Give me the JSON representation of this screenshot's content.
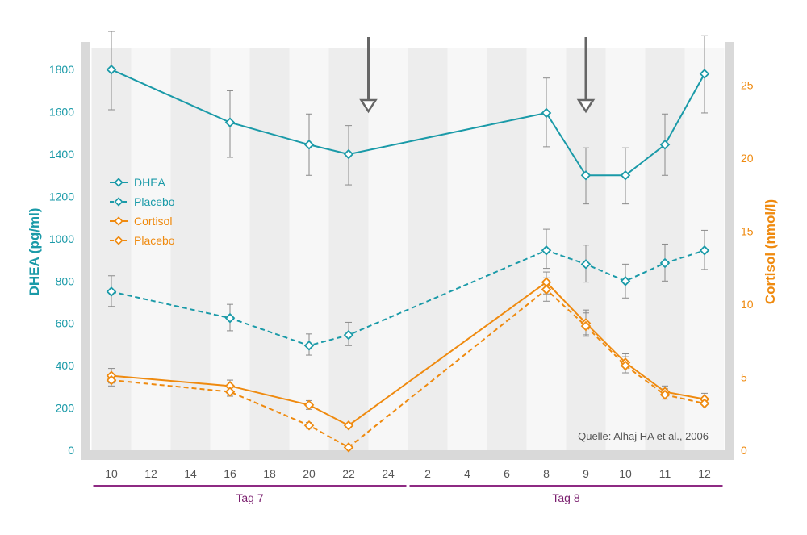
{
  "colors": {
    "dhea": "#1a9aa8",
    "cortisol": "#ef8a0f",
    "group_line": "#8e2a83",
    "arrow": "#666666",
    "error_bar": "#8a8a8a"
  },
  "chart_data": {
    "type": "line",
    "x_categories": [
      "10",
      "12",
      "14",
      "16",
      "18",
      "20",
      "22",
      "24",
      "2",
      "4",
      "6",
      "8",
      "9",
      "10",
      "11",
      "12"
    ],
    "x_groups": [
      {
        "label": "Tag 7",
        "from_index": 0,
        "to_index": 7
      },
      {
        "label": "Tag 8",
        "from_index": 8,
        "to_index": 15
      }
    ],
    "y_left": {
      "label": "DHEA (pg/ml)",
      "range": [
        0,
        1900
      ],
      "ticks": [
        0,
        200,
        400,
        600,
        800,
        1000,
        1200,
        1400,
        1600,
        1800
      ]
    },
    "y_right": {
      "label": "Cortisol (nmol/l)",
      "range": [
        0,
        27.5
      ],
      "ticks": [
        0,
        5,
        10,
        15,
        20,
        25
      ]
    },
    "series": [
      {
        "name": "DHEA",
        "axis": "left",
        "style": "solid",
        "color_key": "dhea",
        "points": [
          {
            "x_index": 0,
            "value": 1800,
            "err_low": 1610,
            "err_high": 1980
          },
          {
            "x_index": 3,
            "value": 1550,
            "err_low": 1385,
            "err_high": 1700
          },
          {
            "x_index": 5,
            "value": 1445,
            "err_low": 1300,
            "err_high": 1590
          },
          {
            "x_index": 6,
            "value": 1400,
            "err_low": 1255,
            "err_high": 1535
          },
          {
            "x_index": 11,
            "value": 1595,
            "err_low": 1435,
            "err_high": 1760
          },
          {
            "x_index": 12,
            "value": 1300,
            "err_low": 1165,
            "err_high": 1430
          },
          {
            "x_index": 13,
            "value": 1300,
            "err_low": 1165,
            "err_high": 1430
          },
          {
            "x_index": 14,
            "value": 1445,
            "err_low": 1300,
            "err_high": 1590
          },
          {
            "x_index": 15,
            "value": 1780,
            "err_low": 1595,
            "err_high": 1960
          }
        ]
      },
      {
        "name": "Placebo",
        "axis": "left",
        "style": "dashed",
        "color_key": "dhea",
        "points": [
          {
            "x_index": 0,
            "value": 750,
            "err_low": 680,
            "err_high": 825
          },
          {
            "x_index": 3,
            "value": 625,
            "err_low": 565,
            "err_high": 690
          },
          {
            "x_index": 5,
            "value": 495,
            "err_low": 450,
            "err_high": 550
          },
          {
            "x_index": 6,
            "value": 545,
            "err_low": 495,
            "err_high": 605
          },
          {
            "x_index": 11,
            "value": 945,
            "err_low": 860,
            "err_high": 1045
          },
          {
            "x_index": 12,
            "value": 880,
            "err_low": 795,
            "err_high": 970
          },
          {
            "x_index": 13,
            "value": 800,
            "err_low": 720,
            "err_high": 880
          },
          {
            "x_index": 14,
            "value": 885,
            "err_low": 800,
            "err_high": 975
          },
          {
            "x_index": 15,
            "value": 945,
            "err_low": 855,
            "err_high": 1040
          }
        ]
      },
      {
        "name": "Cortisol",
        "axis": "right",
        "style": "solid",
        "color_key": "cortisol",
        "points": [
          {
            "x_index": 0,
            "value": 5.1,
            "err_low": 4.6,
            "err_high": 5.6
          },
          {
            "x_index": 3,
            "value": 4.4,
            "err_low": 4.0,
            "err_high": 4.8
          },
          {
            "x_index": 5,
            "value": 3.1,
            "err_low": 2.8,
            "err_high": 3.4
          },
          {
            "x_index": 6,
            "value": 1.7,
            "err_low": 1.6,
            "err_high": 1.8
          },
          {
            "x_index": 11,
            "value": 11.5,
            "err_low": 10.7,
            "err_high": 12.2
          },
          {
            "x_index": 12,
            "value": 8.7,
            "err_low": 7.9,
            "err_high": 9.6
          },
          {
            "x_index": 13,
            "value": 6.0,
            "err_low": 5.5,
            "err_high": 6.6
          },
          {
            "x_index": 14,
            "value": 4.0,
            "err_low": 3.7,
            "err_high": 4.4
          },
          {
            "x_index": 15,
            "value": 3.5,
            "err_low": 3.2,
            "err_high": 3.9
          }
        ]
      },
      {
        "name": "Placebo",
        "axis": "right",
        "style": "dashed",
        "color_key": "cortisol",
        "points": [
          {
            "x_index": 0,
            "value": 4.8,
            "err_low": 4.4,
            "err_high": 5.2
          },
          {
            "x_index": 3,
            "value": 4.0,
            "err_low": 3.7,
            "err_high": 4.3
          },
          {
            "x_index": 5,
            "value": 1.7,
            "err_low": 1.5,
            "err_high": 1.9
          },
          {
            "x_index": 6,
            "value": 0.2,
            "err_low": 0.1,
            "err_high": 0.3
          },
          {
            "x_index": 11,
            "value": 11.0,
            "err_low": 10.2,
            "err_high": 11.8
          },
          {
            "x_index": 12,
            "value": 8.5,
            "err_low": 7.8,
            "err_high": 9.4
          },
          {
            "x_index": 13,
            "value": 5.8,
            "err_low": 5.3,
            "err_high": 6.4
          },
          {
            "x_index": 14,
            "value": 3.8,
            "err_low": 3.5,
            "err_high": 4.2
          },
          {
            "x_index": 15,
            "value": 3.2,
            "err_low": 2.9,
            "err_high": 3.6
          }
        ]
      }
    ],
    "arrows_at_x_index": [
      6.5,
      12
    ],
    "legend": {
      "position": "left-center",
      "entries": [
        "DHEA",
        "Placebo",
        "Cortisol",
        "Placebo"
      ]
    },
    "source_note": "Quelle: Alhaj HA et al., 2006",
    "grid": "alternating vertical bands"
  }
}
